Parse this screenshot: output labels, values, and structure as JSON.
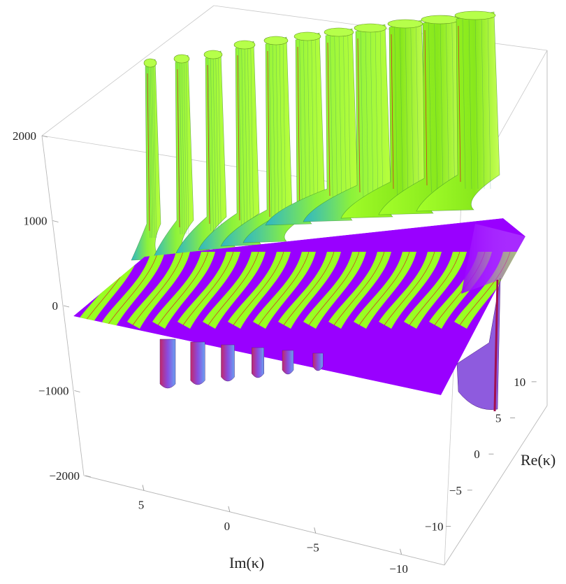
{
  "chart_data": {
    "type": "surface3d",
    "title": "",
    "xlabel": "Im(κ)",
    "ylabel": "Re(κ)",
    "zlabel": "",
    "x_range": [
      -12,
      8
    ],
    "y_range": [
      -11,
      11
    ],
    "z_range": [
      -2000,
      2000
    ],
    "x_ticks": [
      5,
      0,
      -5,
      -10
    ],
    "x_tick_labels": [
      "5",
      "0",
      "−5",
      "−10"
    ],
    "y_ticks": [
      10,
      5,
      0,
      -5,
      -10
    ],
    "y_tick_labels": [
      "10",
      "5",
      "0",
      "−5",
      "−10"
    ],
    "z_ticks": [
      2000,
      1000,
      0,
      -1000,
      -2000
    ],
    "z_tick_labels": [
      "2000",
      "1000",
      "0",
      "−1000",
      "−2000"
    ],
    "surface_colors": {
      "band_a": "#99ff22",
      "band_b": "#9900ff",
      "wall": "#33bbcc",
      "contour": "#cc3322"
    },
    "poles_positive": 11,
    "poles_negative": 6,
    "box_visible": true,
    "grid": false
  }
}
